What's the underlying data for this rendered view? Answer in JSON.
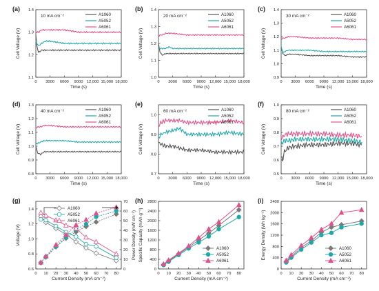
{
  "chart_data": [
    {
      "type": "line",
      "panel_label": "(a)",
      "annotation": "10 mA cm⁻²",
      "xlabel": "Time (s)",
      "ylabel": "Cell Voltage (V)",
      "xlim": [
        0,
        18000
      ],
      "ylim": [
        1.1,
        1.4
      ],
      "xticks": [
        "0",
        "3000",
        "6000",
        "9000",
        "12,000",
        "15,000",
        "18,000"
      ],
      "yticks": [
        "1.1",
        "1.2",
        "1.3",
        "1.4"
      ],
      "legend": "top-right",
      "series": [
        {
          "name": "A1060",
          "color": "#555555",
          "x": [
            0,
            200,
            600,
            1200,
            2000,
            3000,
            6000,
            9000,
            12000,
            15000,
            18000
          ],
          "y": [
            1.29,
            1.24,
            1.21,
            1.22,
            1.22,
            1.22,
            1.22,
            1.22,
            1.22,
            1.22,
            1.22
          ]
        },
        {
          "name": "A5052",
          "color": "#20a8a8",
          "x": [
            0,
            200,
            600,
            1200,
            2000,
            3000,
            6000,
            9000,
            12000,
            15000,
            18000
          ],
          "y": [
            1.26,
            1.25,
            1.24,
            1.25,
            1.26,
            1.26,
            1.25,
            1.25,
            1.25,
            1.25,
            1.25
          ]
        },
        {
          "name": "A6061",
          "color": "#e0508a",
          "x": [
            0,
            200,
            600,
            1200,
            2000,
            3000,
            6000,
            9000,
            12000,
            15000,
            18000
          ],
          "y": [
            1.3,
            1.3,
            1.3,
            1.31,
            1.31,
            1.31,
            1.31,
            1.3,
            1.3,
            1.3,
            1.3
          ]
        }
      ]
    },
    {
      "type": "line",
      "panel_label": "(b)",
      "annotation": "20 mA cm⁻²",
      "xlabel": "Time (s)",
      "ylabel": "Cell Voltage (V)",
      "xlim": [
        0,
        18000
      ],
      "ylim": [
        1.0,
        1.4
      ],
      "xticks": [
        "0",
        "3000",
        "6000",
        "9000",
        "12,000",
        "15,000",
        "18,000"
      ],
      "yticks": [
        "1.0",
        "1.1",
        "1.2",
        "1.3",
        "1.4"
      ],
      "legend": "top-right",
      "series": [
        {
          "name": "A1060",
          "color": "#555555",
          "x": [
            0,
            300,
            800,
            1500,
            2200,
            3000,
            6000,
            9000,
            12000,
            15000,
            18000
          ],
          "y": [
            1.2,
            1.15,
            1.13,
            1.14,
            1.14,
            1.14,
            1.14,
            1.14,
            1.14,
            1.14,
            1.14
          ]
        },
        {
          "name": "A5052",
          "color": "#20a8a8",
          "x": [
            0,
            300,
            800,
            1500,
            2200,
            3000,
            6000,
            9000,
            12000,
            15000,
            18000
          ],
          "y": [
            1.18,
            1.17,
            1.17,
            1.17,
            1.18,
            1.17,
            1.17,
            1.17,
            1.17,
            1.17,
            1.17
          ]
        },
        {
          "name": "A6061",
          "color": "#e0508a",
          "x": [
            0,
            300,
            800,
            1500,
            2200,
            3000,
            6000,
            9000,
            12000,
            15000,
            18000
          ],
          "y": [
            1.24,
            1.25,
            1.25,
            1.26,
            1.26,
            1.26,
            1.25,
            1.25,
            1.25,
            1.25,
            1.25
          ]
        }
      ]
    },
    {
      "type": "line",
      "panel_label": "(c)",
      "annotation": "30 mA cm⁻²",
      "xlabel": "Time (s)",
      "ylabel": "Cell Voltage (V)",
      "xlim": [
        0,
        18000
      ],
      "ylim": [
        0.9,
        1.4
      ],
      "xticks": [
        "0",
        "3000",
        "6000",
        "9000",
        "12,000",
        "15,000",
        "18,000"
      ],
      "yticks": [
        "0.9",
        "1.0",
        "1.1",
        "1.2",
        "1.3",
        "1.4"
      ],
      "legend": "top-right",
      "series": [
        {
          "name": "A1060",
          "color": "#555555",
          "x": [
            0,
            300,
            800,
            1500,
            2500,
            3000,
            6000,
            9000,
            12000,
            15000,
            18000
          ],
          "y": [
            1.12,
            1.08,
            1.06,
            1.07,
            1.07,
            1.07,
            1.06,
            1.06,
            1.06,
            1.05,
            1.05
          ]
        },
        {
          "name": "A5052",
          "color": "#20a8a8",
          "x": [
            0,
            300,
            800,
            1500,
            2500,
            3000,
            6000,
            9000,
            12000,
            15000,
            18000
          ],
          "y": [
            1.13,
            1.08,
            1.09,
            1.1,
            1.1,
            1.1,
            1.1,
            1.09,
            1.09,
            1.09,
            1.09
          ]
        },
        {
          "name": "A6061",
          "color": "#e0508a",
          "x": [
            0,
            300,
            800,
            1500,
            2500,
            3000,
            6000,
            9000,
            12000,
            15000,
            18000
          ],
          "y": [
            1.18,
            1.19,
            1.19,
            1.2,
            1.2,
            1.2,
            1.19,
            1.19,
            1.19,
            1.18,
            1.18
          ]
        }
      ]
    },
    {
      "type": "line",
      "panel_label": "(d)",
      "annotation": "40 mA cm⁻²",
      "xlabel": "Time (s)",
      "ylabel": "Cell Voltage (V)",
      "xlim": [
        0,
        18000
      ],
      "ylim": [
        0.8,
        1.3
      ],
      "xticks": [
        "0",
        "3000",
        "6000",
        "9000",
        "12,000",
        "15,000",
        "18,000"
      ],
      "yticks": [
        "0.8",
        "0.9",
        "1.0",
        "1.1",
        "1.2",
        "1.3"
      ],
      "legend": "top-right",
      "series": [
        {
          "name": "A1060",
          "color": "#555555",
          "x": [
            0,
            400,
            1000,
            1800,
            2600,
            3000,
            6000,
            9000,
            12000,
            15000,
            18000
          ],
          "y": [
            1.0,
            0.95,
            0.94,
            0.96,
            0.96,
            0.96,
            0.96,
            0.96,
            0.96,
            0.96,
            0.96
          ]
        },
        {
          "name": "A5052",
          "color": "#20a8a8",
          "x": [
            0,
            400,
            1000,
            1800,
            2600,
            3000,
            6000,
            9000,
            12000,
            15000,
            18000
          ],
          "y": [
            1.02,
            1.02,
            1.03,
            1.04,
            1.04,
            1.04,
            1.04,
            1.03,
            1.03,
            1.03,
            1.03
          ]
        },
        {
          "name": "A6061",
          "color": "#e0508a",
          "x": [
            0,
            400,
            1000,
            1800,
            2600,
            3000,
            6000,
            9000,
            12000,
            15000,
            18000
          ],
          "y": [
            1.13,
            1.14,
            1.14,
            1.15,
            1.15,
            1.15,
            1.14,
            1.14,
            1.14,
            1.14,
            1.14
          ]
        }
      ]
    },
    {
      "type": "line",
      "panel_label": "(e)",
      "annotation": "60 mA cm⁻²",
      "xlabel": "Time (s)",
      "ylabel": "Cell Voltage (V)",
      "xlim": [
        0,
        18000
      ],
      "ylim": [
        0.7,
        1.05
      ],
      "xticks": [
        "0",
        "3000",
        "6000",
        "9000",
        "12,000",
        "15,000",
        "18,000"
      ],
      "yticks": [
        "0.7",
        "0.8",
        "0.9",
        "1.0"
      ],
      "legend": "top-right",
      "series": [
        {
          "name": "A1060",
          "color": "#555555",
          "x": [
            0,
            500,
            1500,
            3000,
            4500,
            6000,
            9000,
            12000,
            15000,
            18000
          ],
          "y": [
            0.86,
            0.85,
            0.84,
            0.84,
            0.83,
            0.82,
            0.82,
            0.81,
            0.81,
            0.81
          ]
        },
        {
          "name": "A5052",
          "color": "#20a8a8",
          "x": [
            0,
            500,
            1500,
            3000,
            4500,
            6000,
            9000,
            12000,
            15000,
            18000
          ],
          "y": [
            0.88,
            0.9,
            0.91,
            0.92,
            0.93,
            0.9,
            0.9,
            0.9,
            0.91,
            0.9
          ]
        },
        {
          "name": "A6061",
          "color": "#e0508a",
          "x": [
            0,
            500,
            1500,
            3000,
            4500,
            6000,
            9000,
            12000,
            15000,
            18000
          ],
          "y": [
            0.94,
            0.96,
            0.97,
            0.97,
            0.97,
            0.96,
            0.96,
            0.96,
            0.97,
            0.96
          ]
        }
      ]
    },
    {
      "type": "line",
      "panel_label": "(f)",
      "annotation": "80 mA cm⁻²",
      "xlabel": "Time (s)",
      "ylabel": "Cell Voltage (V)",
      "xlim": [
        0,
        18000
      ],
      "ylim": [
        0.5,
        1.0
      ],
      "xticks": [
        "0",
        "3000",
        "6000",
        "9000",
        "12,000",
        "15,000",
        "18,000"
      ],
      "yticks": [
        "0.5",
        "0.6",
        "0.7",
        "0.8",
        "0.9",
        "1.0"
      ],
      "legend": "top-right",
      "series": [
        {
          "name": "A1060",
          "color": "#555555",
          "x": [
            0,
            300,
            700,
            1500,
            3000,
            6000,
            9000,
            12000,
            15000,
            17000
          ],
          "y": [
            0.62,
            0.6,
            0.66,
            0.69,
            0.7,
            0.71,
            0.71,
            0.72,
            0.72,
            0.71
          ]
        },
        {
          "name": "A5052",
          "color": "#20a8a8",
          "x": [
            0,
            300,
            700,
            1500,
            3000,
            6000,
            9000,
            12000,
            15000,
            17000
          ],
          "y": [
            0.72,
            0.73,
            0.74,
            0.74,
            0.75,
            0.75,
            0.75,
            0.75,
            0.74,
            0.73
          ]
        },
        {
          "name": "A6061",
          "color": "#e0508a",
          "x": [
            0,
            300,
            700,
            1500,
            3000,
            6000,
            9000,
            12000,
            15000,
            17000
          ],
          "y": [
            0.76,
            0.77,
            0.78,
            0.79,
            0.79,
            0.79,
            0.79,
            0.78,
            0.78,
            0.77
          ]
        }
      ]
    },
    {
      "type": "line",
      "panel_label": "(g)",
      "xlabel": "Current Density (mA cm⁻²)",
      "ylabel": "Voltage (V)",
      "y2label": "Power Density (mW cm⁻²)",
      "xlim": [
        0,
        85
      ],
      "ylim": [
        0.6,
        1.5
      ],
      "y2lim": [
        0,
        70
      ],
      "xticks": [
        "0",
        "10",
        "20",
        "30",
        "40",
        "50",
        "60",
        "70",
        "80"
      ],
      "yticks": [
        "0.6",
        "0.8",
        "1.0",
        "1.2",
        "1.4"
      ],
      "y2ticks": [
        "0",
        "10",
        "20",
        "30",
        "40",
        "50",
        "60",
        "70"
      ],
      "legend": "top-center",
      "x": [
        5,
        10,
        20,
        30,
        40,
        50,
        60,
        80
      ],
      "series": [
        {
          "name": "A1060",
          "color": "#7a7a7a",
          "voltage": [
            1.3,
            1.22,
            1.14,
            1.06,
            0.96,
            0.88,
            0.81,
            0.71
          ],
          "power": [
            6.5,
            12.2,
            22.8,
            31.8,
            38.4,
            44.0,
            48.6,
            56.8
          ]
        },
        {
          "name": "A5052",
          "color": "#20a8a8",
          "voltage": [
            1.26,
            1.25,
            1.17,
            1.09,
            1.03,
            0.93,
            0.9,
            0.75
          ],
          "power": [
            6.3,
            12.5,
            23.4,
            32.7,
            41.2,
            46.5,
            54.0,
            60.0
          ]
        },
        {
          "name": "A6061",
          "color": "#e0508a",
          "voltage": [
            1.35,
            1.31,
            1.25,
            1.18,
            1.14,
            1.02,
            0.96,
            0.8
          ],
          "power": [
            6.8,
            13.1,
            25.0,
            35.4,
            45.6,
            51.0,
            57.6,
            64.0
          ]
        }
      ]
    },
    {
      "type": "line",
      "panel_label": "(h)",
      "xlabel": "Current Density (mA cm⁻²)",
      "ylabel": "Specific Capacity (mAh g⁻¹)",
      "xlim": [
        0,
        85
      ],
      "ylim": [
        0,
        2800
      ],
      "xticks": [
        "0",
        "10",
        "20",
        "30",
        "40",
        "50",
        "60",
        "70",
        "80"
      ],
      "yticks": [
        "0",
        "400",
        "800",
        "1200",
        "1600",
        "2000",
        "2400",
        "2800"
      ],
      "legend": "bottom-right",
      "x": [
        5,
        10,
        20,
        30,
        40,
        50,
        60,
        80
      ],
      "series": [
        {
          "name": "A1060",
          "color": "#7a7a7a",
          "values": [
            180,
            330,
            620,
            900,
            1200,
            1480,
            1800,
            2450
          ]
        },
        {
          "name": "A5052",
          "color": "#20a8a8",
          "values": [
            160,
            300,
            580,
            850,
            1100,
            1350,
            1650,
            2150
          ]
        },
        {
          "name": "A6061",
          "color": "#e0508a",
          "values": [
            200,
            360,
            650,
            950,
            1300,
            1650,
            1950,
            2650
          ]
        }
      ]
    },
    {
      "type": "line",
      "panel_label": "(i)",
      "xlabel": "Current Density (mA cm⁻²)",
      "ylabel": "Energy Density (Wh kg⁻¹)",
      "xlim": [
        0,
        85
      ],
      "ylim": [
        0,
        2400
      ],
      "xticks": [
        "0",
        "10",
        "20",
        "30",
        "40",
        "50",
        "60",
        "70",
        "80"
      ],
      "yticks": [
        "0",
        "400",
        "800",
        "1200",
        "1600",
        "2000",
        "2400"
      ],
      "legend": "bottom-right",
      "x": [
        5,
        10,
        20,
        30,
        40,
        50,
        60,
        80
      ],
      "series": [
        {
          "name": "A1060",
          "color": "#7a7a7a",
          "values": [
            260,
            430,
            760,
            1000,
            1300,
            1480,
            1570,
            1700
          ]
        },
        {
          "name": "A5052",
          "color": "#20a8a8",
          "values": [
            230,
            400,
            690,
            940,
            1200,
            1280,
            1480,
            1610
          ]
        },
        {
          "name": "A6061",
          "color": "#e0508a",
          "values": [
            300,
            500,
            830,
            1110,
            1400,
            1610,
            2000,
            2100
          ]
        }
      ]
    }
  ]
}
